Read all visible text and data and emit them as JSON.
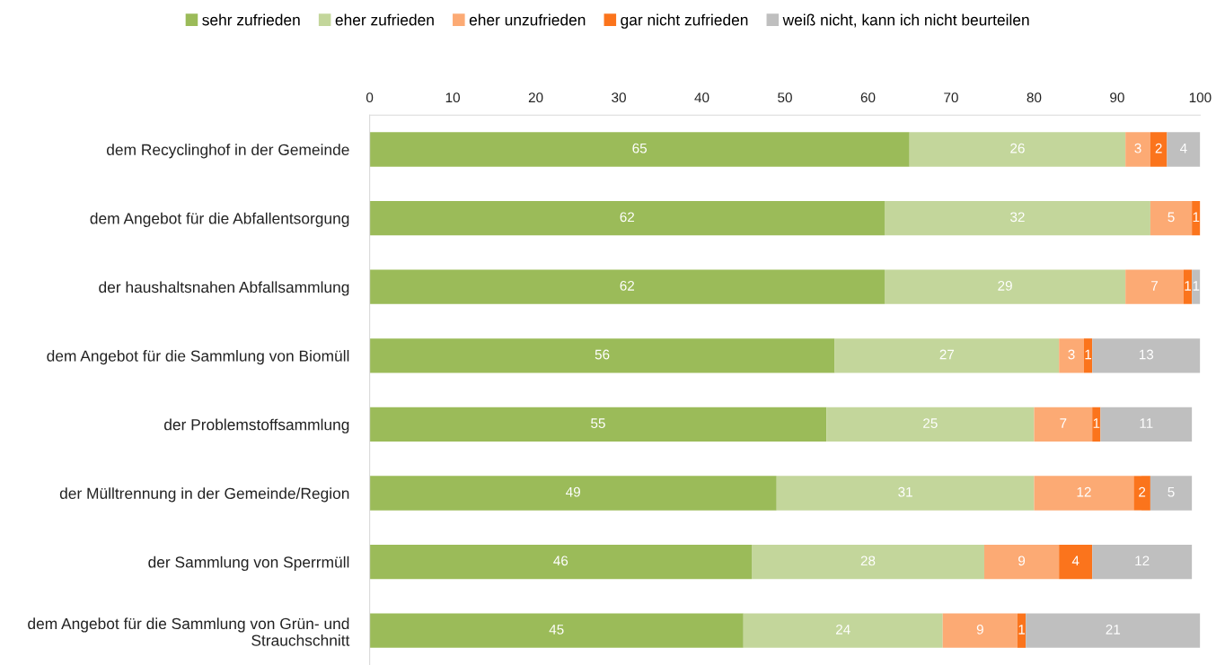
{
  "chart_data": {
    "type": "bar",
    "orientation": "horizontal",
    "stacked": true,
    "categories": [
      "dem Recyclinghof in der Gemeinde",
      "dem Angebot für die Abfallentsorgung",
      "der haushaltsnahen Abfallsammlung",
      "dem Angebot für die Sammlung von Biomüll",
      "der Problemstoffsammlung",
      "der Mülltrennung in der Gemeinde/Region",
      "der Sammlung von Sperrmüll",
      "dem Angebot für die Sammlung von Grün- und\nStrauchschnitt"
    ],
    "series": [
      {
        "name": "sehr zufrieden",
        "color": "#9bbb59",
        "values": [
          65,
          62,
          62,
          56,
          55,
          49,
          46,
          45
        ],
        "value_labels": [
          "65",
          "62",
          "62",
          "56",
          "55",
          "49",
          "46",
          "45"
        ]
      },
      {
        "name": "eher zufrieden",
        "color": "#c3d69b",
        "values": [
          26,
          32,
          29,
          27,
          25,
          31,
          28,
          24
        ],
        "value_labels": [
          "26",
          "32",
          "29",
          "27",
          "25",
          "31",
          "28",
          "24"
        ]
      },
      {
        "name": "eher unzufrieden",
        "color": "#fcaa74",
        "values": [
          3,
          5,
          7,
          3,
          7,
          12,
          9,
          9
        ],
        "value_labels": [
          "3",
          "5",
          "7",
          "3",
          "7",
          "12",
          "9",
          "9"
        ]
      },
      {
        "name": "gar nicht zufrieden",
        "color": "#fb741c",
        "values": [
          2,
          1,
          1,
          1,
          1,
          2,
          4,
          1
        ],
        "value_labels": [
          "2",
          "1",
          "1",
          "1",
          "1",
          "2",
          "4",
          "1"
        ]
      },
      {
        "name": "weiß nicht, kann ich nicht beurteilen",
        "color": "#bfbfbf",
        "values": [
          4,
          null,
          1,
          13,
          11,
          5,
          12,
          21
        ],
        "value_labels": [
          "4",
          null,
          "1",
          "13",
          "11",
          "5",
          "12",
          "21"
        ]
      }
    ],
    "xlim": [
      0,
      100
    ],
    "xticks": [
      0,
      10,
      20,
      30,
      40,
      50,
      60,
      70,
      80,
      90,
      100
    ],
    "grid": false,
    "legend": "top"
  }
}
